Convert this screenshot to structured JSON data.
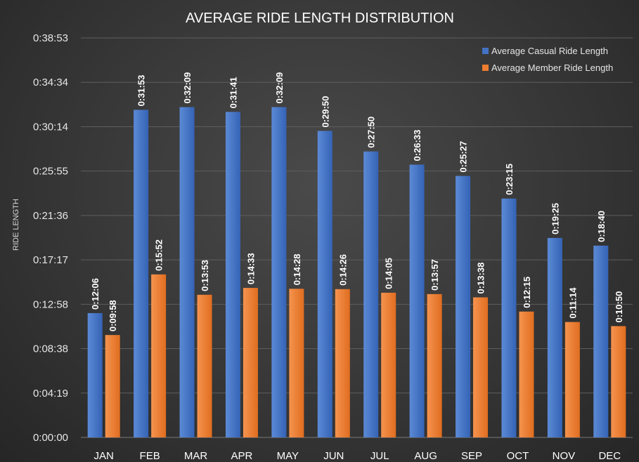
{
  "chart_data": {
    "type": "bar",
    "title": "AVERAGE RIDE LENGTH DISTRIBUTION",
    "xlabel": "",
    "ylabel": "RIDE LENGTH",
    "categories": [
      "JAN",
      "FEB",
      "MAR",
      "APR",
      "MAY",
      "JUN",
      "JUL",
      "AUG",
      "SEP",
      "OCT",
      "NOV",
      "DEC"
    ],
    "y_ticks": [
      "0:00:00",
      "0:04:19",
      "0:08:38",
      "0:12:58",
      "0:17:17",
      "0:21:36",
      "0:25:55",
      "0:30:14",
      "0:34:34",
      "0:38:53"
    ],
    "ylim_seconds": [
      0,
      2333
    ],
    "legend_position": "top-right",
    "grid": "horizontal",
    "series": [
      {
        "name": "Average Casual Ride Length",
        "color": "#4472c4",
        "labels": [
          "0:12:06",
          "0:31:53",
          "0:32:09",
          "0:31:41",
          "0:32:09",
          "0:29:50",
          "0:27:50",
          "0:26:33",
          "0:25:27",
          "0:23:15",
          "0:19:25",
          "0:18:40"
        ],
        "values_seconds": [
          726,
          1913,
          1929,
          1901,
          1929,
          1790,
          1670,
          1593,
          1527,
          1395,
          1165,
          1120
        ]
      },
      {
        "name": "Average Member Ride Length",
        "color": "#ed7d31",
        "labels": [
          "0:09:58",
          "0:15:52",
          "0:13:53",
          "0:14:33",
          "0:14:28",
          "0:14:26",
          "0:14:05",
          "0:13:57",
          "0:13:38",
          "0:12:15",
          "0:11:14",
          "0:10:50"
        ],
        "values_seconds": [
          598,
          952,
          833,
          873,
          868,
          866,
          845,
          837,
          818,
          735,
          674,
          650
        ]
      }
    ]
  }
}
